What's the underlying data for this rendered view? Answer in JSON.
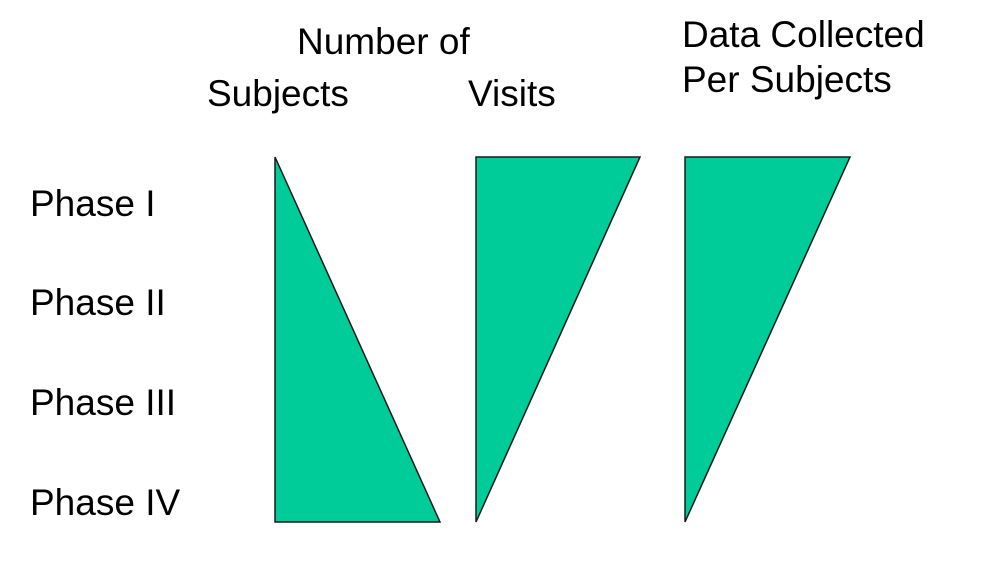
{
  "headers": {
    "number_of": "Number of",
    "subjects": "Subjects",
    "visits": "Visits",
    "data_collected": "Data Collected Per Subjects"
  },
  "phases": [
    {
      "label": "Phase I"
    },
    {
      "label": "Phase II"
    },
    {
      "label": "Phase III"
    },
    {
      "label": "Phase IV"
    }
  ],
  "colors": {
    "fill": "#00CC99",
    "stroke": "#1a1a1a"
  }
}
